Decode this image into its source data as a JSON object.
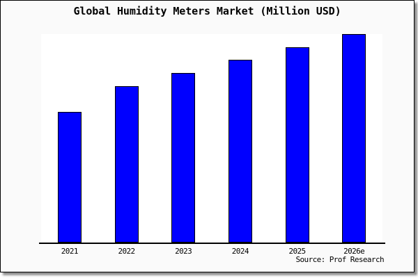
{
  "colors": {
    "bar_fill": "#0000ff",
    "bar_border": "#000000",
    "card_background": "#fafafa",
    "plot_background": "#ffffff",
    "axis_line": "#000000",
    "text": "#000000"
  },
  "chart_data": {
    "type": "bar",
    "title": "Global Humidity Meters Market (Million USD)",
    "categories": [
      "2021",
      "2022",
      "2023",
      "2024",
      "2025",
      "2026e"
    ],
    "values": [
      62.8,
      75.1,
      81.4,
      87.7,
      93.7,
      100
    ],
    "values_note": "relative bar heights as % of tallest (2026e) bar; chart shows no numeric y-axis",
    "xlabel": "",
    "ylabel": "",
    "ylim": [
      0,
      100
    ],
    "grid": false,
    "legend": false,
    "y_axis_shown": false,
    "source": "Source: Prof Research"
  }
}
